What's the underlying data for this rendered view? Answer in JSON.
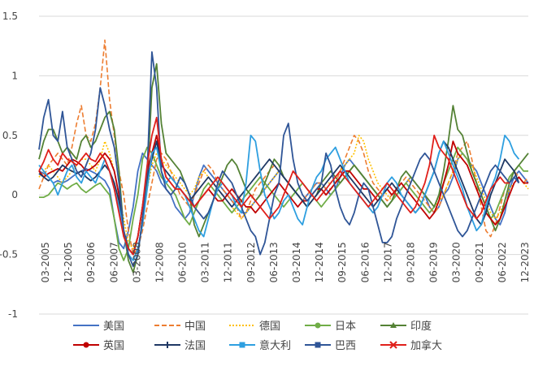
{
  "chart_data": {
    "type": "line",
    "title": "",
    "xlabel": "",
    "ylabel": "",
    "ylim": [
      -1,
      1.5
    ],
    "y_ticks": [
      -1,
      -0.5,
      0,
      0.5,
      1,
      1.5
    ],
    "y_tick_labels": [
      "-1",
      "-0.5",
      "0",
      "0.5",
      "1",
      "1.5"
    ],
    "x_tick_labels": [
      "03-2005",
      "12-2005",
      "09-2006",
      "06-2007",
      "03-2008",
      "12-2008",
      "06-2010",
      "03-2011",
      "12-2011",
      "09-2012",
      "06-2013",
      "03-2014",
      "12-2014",
      "09-2015",
      "06-2016",
      "12-2017",
      "09-2018",
      "06-2019",
      "03-2020",
      "09-2021",
      "06-2022",
      "12-2023"
    ],
    "grid": "horizontal",
    "legend_position": "bottom",
    "series_colors": [
      "#4472C4",
      "#ED7D31",
      "#FFC000",
      "#70AD47",
      "#548235",
      "#C00000",
      "#1F3864",
      "#2E9FE0",
      "#2F5597",
      "#E0201B"
    ],
    "series": [
      {
        "name": "美国",
        "color": "#4472C4",
        "style": "solid",
        "marker": "none",
        "values": [
          0.2,
          0.18,
          0.15,
          0.1,
          0.12,
          0.1,
          0.12,
          0.15,
          0.18,
          0.2,
          0.22,
          0.2,
          0.18,
          0.15,
          0.12,
          0.05,
          -0.2,
          -0.4,
          -0.45,
          -0.3,
          -0.1,
          0.2,
          0.35,
          0.3,
          0.25,
          0.2,
          0.1,
          0.05,
          0.0,
          -0.1,
          -0.15,
          -0.2,
          -0.15,
          0.0,
          0.15,
          0.25,
          0.2,
          0.15,
          0.1,
          0.05,
          0.0,
          -0.05,
          -0.1,
          -0.15,
          -0.15,
          -0.1,
          -0.05,
          0.0,
          0.05,
          0.1,
          0.15,
          0.2,
          0.15,
          0.1,
          0.05,
          0.0,
          -0.05,
          0.0,
          0.05,
          0.1,
          0.1,
          0.05,
          0.0,
          0.05,
          0.15,
          0.25,
          0.3,
          0.25,
          0.2,
          0.15,
          0.1,
          0.05,
          0.0,
          -0.05,
          -0.1,
          -0.05,
          0.0,
          0.05,
          0.1,
          0.15,
          0.1,
          0.05,
          0.0,
          -0.1,
          -0.15,
          -0.1,
          0.0,
          0.05,
          0.15,
          0.3,
          0.35,
          0.3,
          0.25,
          0.2,
          0.1,
          0.0,
          -0.1,
          -0.2,
          -0.25,
          -0.15,
          0.05,
          0.15,
          0.2,
          0.15,
          0.1
        ]
      },
      {
        "name": "中国",
        "color": "#ED7D31",
        "style": "dashed",
        "marker": "none",
        "values": [
          0.05,
          0.15,
          0.25,
          0.3,
          0.35,
          0.3,
          0.25,
          0.4,
          0.6,
          0.75,
          0.5,
          0.45,
          0.6,
          0.9,
          1.3,
          0.8,
          0.5,
          0.2,
          0.0,
          -0.3,
          -0.5,
          -0.45,
          -0.3,
          -0.1,
          0.1,
          0.3,
          0.35,
          0.3,
          0.2,
          0.1,
          0.0,
          -0.05,
          -0.1,
          0.0,
          0.1,
          0.2,
          0.25,
          0.2,
          0.1,
          0.05,
          0.0,
          -0.05,
          -0.1,
          -0.2,
          -0.15,
          -0.05,
          0.05,
          0.1,
          0.15,
          0.2,
          0.25,
          0.2,
          0.15,
          0.1,
          0.05,
          0.0,
          -0.05,
          0.0,
          0.05,
          0.1,
          0.1,
          0.05,
          0.05,
          0.1,
          0.2,
          0.3,
          0.4,
          0.5,
          0.45,
          0.35,
          0.2,
          0.1,
          0.05,
          0.0,
          -0.05,
          0.0,
          0.05,
          0.1,
          0.15,
          0.1,
          0.05,
          0.0,
          -0.05,
          -0.1,
          -0.15,
          -0.1,
          0.0,
          0.1,
          0.2,
          0.35,
          0.4,
          0.45,
          0.3,
          0.1,
          -0.1,
          -0.3,
          -0.35,
          -0.25,
          -0.1,
          0.05,
          0.15,
          0.2,
          0.15,
          0.1,
          0.15
        ]
      },
      {
        "name": "德国",
        "color": "#FFC000",
        "style": "dotted",
        "marker": "none",
        "values": [
          0.15,
          0.2,
          0.25,
          0.2,
          0.15,
          0.1,
          0.15,
          0.2,
          0.25,
          0.3,
          0.3,
          0.25,
          0.2,
          0.3,
          0.45,
          0.35,
          0.2,
          0.0,
          -0.2,
          -0.4,
          -0.45,
          -0.35,
          -0.15,
          0.05,
          0.25,
          0.35,
          0.3,
          0.25,
          0.2,
          0.15,
          0.1,
          0.05,
          0.0,
          0.05,
          0.15,
          0.2,
          0.15,
          0.1,
          0.05,
          0.0,
          -0.05,
          -0.1,
          -0.15,
          -0.2,
          -0.15,
          -0.1,
          -0.05,
          0.0,
          0.05,
          0.1,
          0.15,
          0.2,
          0.15,
          0.1,
          0.05,
          0.0,
          -0.05,
          -0.1,
          -0.05,
          0.0,
          0.05,
          0.1,
          0.1,
          0.15,
          0.2,
          0.25,
          0.3,
          0.35,
          0.5,
          0.45,
          0.3,
          0.2,
          0.1,
          0.05,
          0.0,
          -0.05,
          0.0,
          0.05,
          0.1,
          0.15,
          0.1,
          0.05,
          0.0,
          -0.05,
          -0.1,
          -0.05,
          0.0,
          0.1,
          0.2,
          0.3,
          0.35,
          0.3,
          0.25,
          0.15,
          0.05,
          -0.05,
          -0.15,
          -0.2,
          -0.15,
          -0.05,
          0.05,
          0.1,
          0.15,
          0.1,
          0.05
        ]
      },
      {
        "name": "日本",
        "color": "#70AD47",
        "style": "solid",
        "marker": "dot",
        "values": [
          -0.02,
          -0.02,
          0.0,
          0.05,
          0.1,
          0.08,
          0.05,
          0.08,
          0.1,
          0.05,
          0.02,
          0.05,
          0.08,
          0.1,
          0.05,
          0.0,
          -0.2,
          -0.45,
          -0.55,
          -0.45,
          -0.2,
          0.0,
          0.3,
          0.4,
          0.35,
          0.25,
          0.15,
          0.1,
          0.05,
          0.0,
          -0.1,
          -0.2,
          -0.25,
          -0.15,
          -0.05,
          0.05,
          0.1,
          0.05,
          0.0,
          -0.05,
          -0.1,
          -0.15,
          -0.1,
          -0.05,
          0.0,
          0.05,
          0.1,
          0.15,
          0.1,
          0.05,
          0.0,
          -0.05,
          -0.1,
          -0.05,
          0.0,
          0.05,
          0.1,
          0.05,
          0.0,
          -0.05,
          -0.1,
          -0.05,
          0.0,
          0.05,
          0.1,
          0.15,
          0.2,
          0.25,
          0.2,
          0.15,
          0.1,
          0.05,
          0.0,
          -0.05,
          -0.1,
          -0.05,
          0.0,
          0.05,
          0.1,
          0.05,
          0.0,
          -0.05,
          -0.1,
          -0.15,
          -0.1,
          0.0,
          0.1,
          0.2,
          0.3,
          0.4,
          0.35,
          0.3,
          0.2,
          0.1,
          0.0,
          -0.1,
          -0.2,
          -0.15,
          -0.05,
          0.05,
          0.15,
          0.2,
          0.25,
          0.2,
          0.2
        ]
      },
      {
        "name": "印度",
        "color": "#548235",
        "style": "solid",
        "marker": "triangle",
        "values": [
          0.3,
          0.45,
          0.55,
          0.55,
          0.45,
          0.35,
          0.4,
          0.35,
          0.3,
          0.45,
          0.5,
          0.4,
          0.45,
          0.55,
          0.65,
          0.7,
          0.55,
          0.2,
          -0.3,
          -0.55,
          -0.65,
          -0.5,
          -0.2,
          0.1,
          0.9,
          1.1,
          0.6,
          0.35,
          0.3,
          0.25,
          0.2,
          0.1,
          0.0,
          -0.25,
          -0.35,
          -0.25,
          -0.15,
          -0.05,
          0.05,
          0.15,
          0.25,
          0.3,
          0.25,
          0.15,
          0.05,
          0.0,
          -0.05,
          0.0,
          0.1,
          0.2,
          0.3,
          0.25,
          0.15,
          0.1,
          0.05,
          0.0,
          -0.05,
          -0.1,
          -0.05,
          0.0,
          0.1,
          0.15,
          0.2,
          0.15,
          0.1,
          0.15,
          0.2,
          0.25,
          0.2,
          0.15,
          0.1,
          0.05,
          0.0,
          -0.05,
          -0.1,
          -0.05,
          0.05,
          0.15,
          0.2,
          0.15,
          0.1,
          0.05,
          0.0,
          -0.05,
          -0.1,
          0.0,
          0.2,
          0.45,
          0.75,
          0.55,
          0.5,
          0.35,
          0.2,
          0.1,
          0.0,
          -0.1,
          -0.2,
          -0.3,
          -0.2,
          -0.05,
          0.1,
          0.2,
          0.25,
          0.3,
          0.35
        ]
      },
      {
        "name": "英国",
        "color": "#C00000",
        "style": "solid",
        "marker": "dot",
        "values": [
          0.2,
          0.15,
          0.18,
          0.2,
          0.22,
          0.2,
          0.25,
          0.3,
          0.28,
          0.25,
          0.2,
          0.22,
          0.25,
          0.3,
          0.35,
          0.3,
          0.2,
          0.0,
          -0.3,
          -0.45,
          -0.5,
          -0.35,
          -0.1,
          0.2,
          0.35,
          0.5,
          0.3,
          0.15,
          0.1,
          0.05,
          0.05,
          0.0,
          -0.05,
          -0.1,
          -0.05,
          0.0,
          0.05,
          0.0,
          -0.05,
          -0.05,
          0.0,
          0.05,
          0.0,
          -0.05,
          -0.1,
          -0.1,
          -0.15,
          -0.1,
          -0.05,
          0.0,
          0.05,
          0.1,
          0.05,
          0.0,
          -0.05,
          -0.1,
          -0.05,
          -0.05,
          0.0,
          0.05,
          0.05,
          0.0,
          0.05,
          0.1,
          0.15,
          0.2,
          0.2,
          0.15,
          0.1,
          0.05,
          0.05,
          0.0,
          -0.05,
          0.0,
          0.05,
          0.0,
          0.05,
          0.1,
          0.05,
          0.0,
          -0.05,
          -0.1,
          -0.15,
          -0.2,
          -0.15,
          -0.05,
          0.1,
          0.25,
          0.45,
          0.35,
          0.3,
          0.25,
          0.15,
          0.05,
          -0.05,
          -0.15,
          -0.2,
          -0.25,
          -0.2,
          -0.1,
          0.0,
          0.1,
          0.15,
          0.1,
          0.1
        ]
      },
      {
        "name": "法国",
        "color": "#1F3864",
        "style": "solid",
        "marker": "plus",
        "values": [
          0.18,
          0.15,
          0.12,
          0.15,
          0.2,
          0.25,
          0.22,
          0.2,
          0.18,
          0.2,
          0.15,
          0.12,
          0.15,
          0.2,
          0.25,
          0.2,
          0.1,
          -0.05,
          -0.3,
          -0.45,
          -0.5,
          -0.35,
          -0.1,
          0.15,
          0.3,
          0.45,
          0.25,
          0.2,
          0.15,
          0.1,
          0.05,
          0.0,
          -0.05,
          0.0,
          0.05,
          0.1,
          0.15,
          0.1,
          0.05,
          0.0,
          -0.05,
          -0.1,
          -0.05,
          0.0,
          0.05,
          0.1,
          0.15,
          0.2,
          0.25,
          0.3,
          0.25,
          0.2,
          0.15,
          0.1,
          0.05,
          0.0,
          -0.05,
          -0.1,
          -0.05,
          0.0,
          0.05,
          0.1,
          0.15,
          0.2,
          0.25,
          0.2,
          0.15,
          0.1,
          0.05,
          0.0,
          -0.05,
          -0.1,
          -0.05,
          0.0,
          0.05,
          0.1,
          0.05,
          0.0,
          -0.05,
          -0.1,
          -0.15,
          -0.1,
          0.0,
          0.1,
          0.2,
          0.35,
          0.45,
          0.4,
          0.3,
          0.2,
          0.1,
          0.0,
          -0.1,
          -0.2,
          -0.25,
          -0.15,
          0.0,
          0.1,
          0.2,
          0.3,
          0.25,
          0.2,
          0.1
        ]
      },
      {
        "name": "意大利",
        "color": "#2E9FE0",
        "style": "solid",
        "marker": "square",
        "values": [
          0.25,
          0.2,
          0.15,
          0.1,
          0.0,
          0.1,
          0.2,
          0.25,
          0.15,
          0.1,
          0.2,
          0.15,
          0.1,
          0.2,
          0.3,
          0.2,
          0.05,
          -0.1,
          -0.3,
          -0.5,
          -0.55,
          -0.45,
          -0.25,
          0.05,
          0.35,
          0.4,
          0.2,
          0.1,
          0.15,
          0.1,
          0.05,
          0.0,
          -0.1,
          -0.2,
          -0.3,
          -0.35,
          -0.2,
          -0.05,
          0.05,
          0.1,
          0.05,
          0.0,
          -0.1,
          -0.15,
          0.1,
          0.5,
          0.45,
          0.2,
          0.0,
          -0.1,
          -0.2,
          -0.15,
          -0.05,
          0.0,
          -0.1,
          -0.2,
          -0.25,
          -0.1,
          0.05,
          0.15,
          0.2,
          0.3,
          0.35,
          0.4,
          0.3,
          0.2,
          0.1,
          0.05,
          0.0,
          -0.05,
          -0.1,
          -0.15,
          -0.1,
          0.0,
          0.1,
          0.15,
          0.1,
          0.0,
          -0.05,
          -0.1,
          -0.15,
          -0.1,
          0.0,
          0.1,
          0.2,
          0.35,
          0.45,
          0.35,
          0.25,
          0.15,
          0.05,
          -0.1,
          -0.2,
          -0.3,
          -0.25,
          -0.1,
          0.05,
          0.15,
          0.3,
          0.5,
          0.45,
          0.35,
          0.3
        ]
      },
      {
        "name": "巴西",
        "color": "#2F5597",
        "style": "solid",
        "marker": "square",
        "values": [
          0.38,
          0.65,
          0.8,
          0.5,
          0.45,
          0.7,
          0.4,
          0.3,
          0.2,
          0.15,
          0.25,
          0.35,
          0.55,
          0.9,
          0.75,
          0.55,
          0.4,
          0.1,
          -0.3,
          -0.5,
          -0.6,
          -0.5,
          -0.2,
          0.2,
          1.2,
          0.9,
          0.2,
          0.05,
          0.0,
          0.05,
          0.15,
          0.1,
          0.0,
          -0.1,
          -0.15,
          -0.2,
          -0.15,
          -0.05,
          0.1,
          0.2,
          0.15,
          0.1,
          0.0,
          -0.1,
          -0.2,
          -0.3,
          -0.35,
          -0.5,
          -0.4,
          -0.2,
          0.0,
          0.1,
          0.5,
          0.6,
          0.3,
          0.1,
          0.0,
          -0.05,
          0.0,
          0.05,
          0.1,
          0.35,
          0.25,
          0.05,
          -0.1,
          -0.2,
          -0.25,
          -0.15,
          0.0,
          0.1,
          0.05,
          -0.1,
          -0.25,
          -0.4,
          -0.4,
          -0.35,
          -0.2,
          -0.1,
          0.0,
          0.1,
          0.2,
          0.3,
          0.35,
          0.3,
          0.2,
          0.1,
          0.0,
          -0.1,
          -0.2,
          -0.3,
          -0.35,
          -0.3,
          -0.2,
          -0.1,
          0.0,
          0.1,
          0.2,
          0.25,
          0.2,
          0.15,
          0.1,
          0.15,
          0.1
        ]
      },
      {
        "name": "加拿大",
        "color": "#E0201B",
        "style": "solid",
        "marker": "x",
        "values": [
          0.2,
          0.28,
          0.38,
          0.3,
          0.25,
          0.35,
          0.3,
          0.28,
          0.25,
          0.3,
          0.35,
          0.3,
          0.28,
          0.35,
          0.3,
          0.2,
          0.05,
          -0.15,
          -0.35,
          -0.45,
          -0.5,
          -0.35,
          -0.1,
          0.25,
          0.5,
          0.65,
          0.3,
          0.15,
          0.1,
          0.05,
          0.05,
          0.0,
          -0.05,
          -0.1,
          -0.05,
          0.0,
          0.05,
          0.1,
          0.15,
          0.1,
          0.05,
          0.0,
          -0.05,
          -0.1,
          -0.05,
          0.0,
          -0.05,
          -0.1,
          -0.15,
          -0.2,
          -0.15,
          -0.1,
          0.0,
          0.1,
          0.2,
          0.15,
          0.1,
          0.05,
          0.0,
          -0.05,
          0.0,
          0.05,
          0.1,
          0.15,
          0.2,
          0.15,
          0.1,
          0.05,
          0.0,
          -0.05,
          -0.1,
          -0.05,
          0.0,
          0.05,
          0.1,
          0.05,
          0.0,
          -0.05,
          -0.1,
          -0.15,
          -0.1,
          0.0,
          0.1,
          0.25,
          0.5,
          0.4,
          0.35,
          0.3,
          0.2,
          0.1,
          0.0,
          -0.1,
          -0.15,
          -0.2,
          -0.15,
          -0.05,
          0.05,
          0.1,
          0.15,
          0.1,
          0.1
        ]
      }
    ]
  }
}
